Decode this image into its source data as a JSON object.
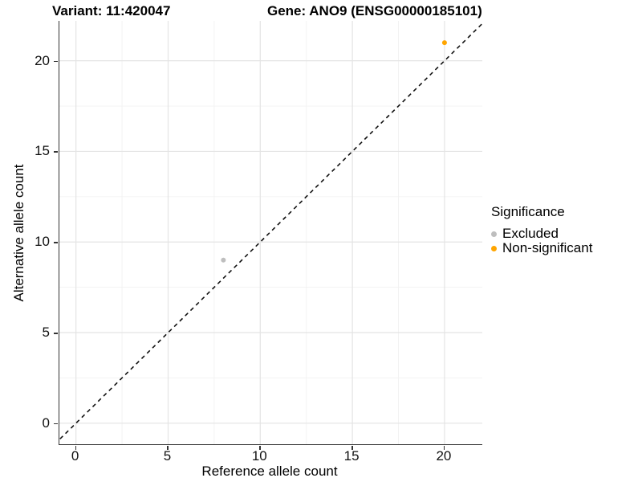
{
  "titles": {
    "variant": "Variant: 11:420047",
    "gene": "Gene: ANO9 (ENSG00000185101)"
  },
  "legend": {
    "title": "Significance",
    "items": [
      {
        "label": "Excluded",
        "color": "#BEBEBE"
      },
      {
        "label": "Non-significant",
        "color": "#FFA500"
      }
    ]
  },
  "chart_data": {
    "type": "scatter",
    "titles": [
      "Variant: 11:420047",
      "Gene: ANO9 (ENSG00000185101)"
    ],
    "xlabel": "Reference allele count",
    "ylabel": "Alternative allele count",
    "x_ticks": [
      0,
      5,
      10,
      15,
      20
    ],
    "y_ticks": [
      0,
      5,
      10,
      15,
      20
    ],
    "x_minor_ticks": [
      2.5,
      7.5,
      12.5,
      17.5
    ],
    "y_minor_ticks": [
      2.5,
      7.5,
      12.5,
      17.5
    ],
    "xlim": [
      -0.9,
      22.05
    ],
    "ylim": [
      -1.16,
      22.2
    ],
    "grid": "major+minor",
    "legend_position": "right",
    "series": [
      {
        "name": "Excluded",
        "color": "#BEBEBE",
        "points": [
          {
            "x": 8,
            "y": 9
          }
        ]
      },
      {
        "name": "Non-significant",
        "color": "#FFA500",
        "points": [
          {
            "x": 20,
            "y": 21
          }
        ]
      }
    ],
    "reference_line": {
      "type": "identity",
      "equation": "y = x",
      "style": "dashed",
      "color": "#111111"
    }
  },
  "colors": {
    "grid_major": "#e4e4e4",
    "grid_minor": "#f2f2f2",
    "axis_line": "#333333",
    "background": "#ffffff"
  }
}
